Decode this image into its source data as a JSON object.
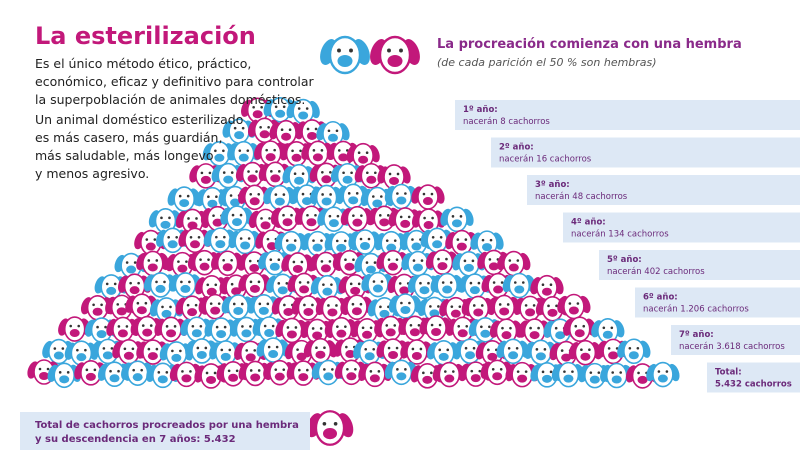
{
  "header": {
    "title": "La esterilización",
    "intro_lines": [
      "Es el único método ético, práctico,",
      "económico, eficaz y definitivo para controlar",
      "la superpoblación de animales domésticos."
    ],
    "benefit_lines": [
      "Un animal doméstico esterilizado",
      "es más casero, más guardián,",
      "más saludable, más longevo",
      "y menos agresivo."
    ]
  },
  "procreation": {
    "title": "La procreación comienza con una hembra",
    "subtitle": "(de cada parición el 50 % son hembras)",
    "years": [
      {
        "label": "1º año:",
        "detail": "nacerán 8 cachorros"
      },
      {
        "label": "2º año:",
        "detail": "nacerán 16 cachorros"
      },
      {
        "label": "3º año:",
        "detail": "nacerán 48 cachorros"
      },
      {
        "label": "4º año:",
        "detail": "nacerán 134 cachorros"
      },
      {
        "label": "5º año:",
        "detail": "nacerán 402 cachorros"
      },
      {
        "label": "6º año:",
        "detail": "nacerán 1.206 cachorros"
      },
      {
        "label": "7º año:",
        "detail": "nacerán 3.618 cachorros"
      }
    ],
    "total": {
      "label": "Total:",
      "detail": "5.432 cachorros"
    }
  },
  "footer": {
    "lines": [
      "Total de cachorros procreados por una hembra",
      "y su descendencia en 7 años: 5.432"
    ]
  }
}
